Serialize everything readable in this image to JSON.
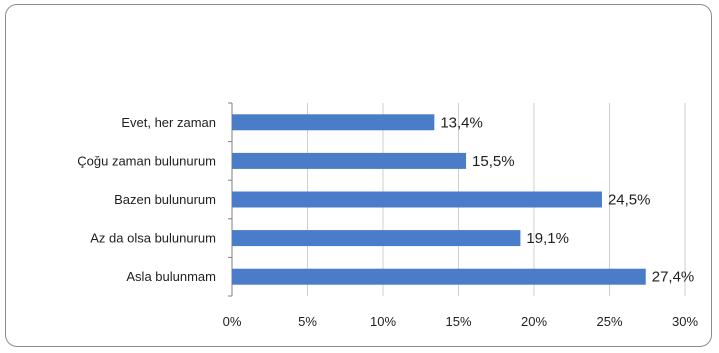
{
  "chart_data": {
    "type": "bar",
    "orientation": "horizontal",
    "title": "",
    "xlabel": "",
    "ylabel": "",
    "categories": [
      "Evet, her zaman",
      "Çoğu zaman bulunurum",
      "Bazen bulunurum",
      "Az da olsa bulunurum",
      "Asla bulunmam"
    ],
    "values": [
      13.4,
      15.5,
      24.5,
      19.1,
      27.4
    ],
    "data_labels": [
      "13,4%",
      "15,5%",
      "24,5%",
      "19,1%",
      "27,4%"
    ],
    "xlim": [
      0,
      30
    ],
    "x_ticks": [
      0,
      5,
      10,
      15,
      20,
      25,
      30
    ],
    "x_tick_labels": [
      "0%",
      "5%",
      "10%",
      "15%",
      "20%",
      "25%",
      "30%"
    ],
    "grid": true,
    "legend": "none",
    "bar_color": "#4a7cc9"
  }
}
